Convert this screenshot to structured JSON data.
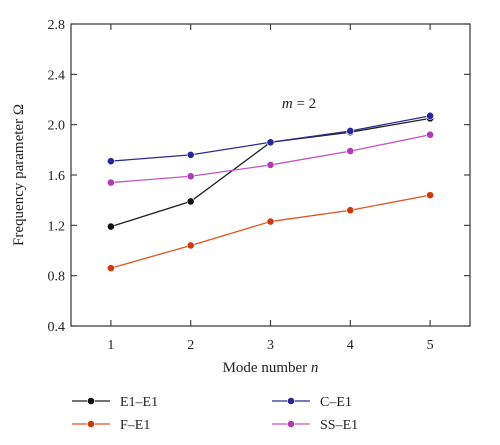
{
  "chart_data": {
    "type": "line",
    "xlabel_text": "Mode number ",
    "xlabel_var": "n",
    "ylabel": "Frequency parameter Ω",
    "annotation": {
      "var": "m",
      "rest": " = 2"
    },
    "x": [
      1,
      2,
      3,
      4,
      5
    ],
    "xlim": [
      0.5,
      5.5
    ],
    "ylim": [
      0.4,
      2.8
    ],
    "xticks": [
      "1",
      "2",
      "3",
      "4",
      "5"
    ],
    "yticks": [
      "0.4",
      "0.8",
      "1.2",
      "1.6",
      "2.0",
      "2.4",
      "2.8"
    ],
    "legend_placement": "bottom",
    "series": [
      {
        "name": "E1–E1",
        "color": "#1f1f1f",
        "marker_fill": "#111111",
        "values": [
          1.19,
          1.39,
          1.86,
          1.94,
          2.05
        ]
      },
      {
        "name": "C–E1",
        "color": "#2b2b8c",
        "marker_fill": "#27279a",
        "values": [
          1.71,
          1.76,
          1.86,
          1.95,
          2.07
        ]
      },
      {
        "name": "F–E1",
        "color": "#e0541e",
        "marker_fill": "#cc3a10",
        "values": [
          0.86,
          1.04,
          1.23,
          1.32,
          1.44
        ]
      },
      {
        "name": "SS–E1",
        "color": "#c454c4",
        "marker_fill": "#b23bb2",
        "values": [
          1.54,
          1.59,
          1.68,
          1.79,
          1.92
        ]
      }
    ]
  }
}
